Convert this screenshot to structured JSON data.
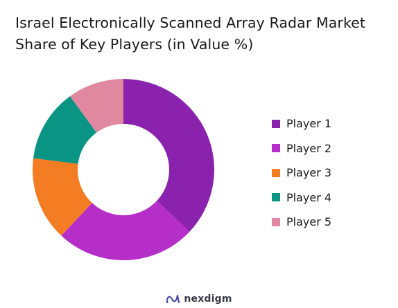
{
  "title": "Israel Electronically Scanned Array Radar Market Share of Key Players (in Value %)",
  "chart_data": {
    "type": "pie",
    "donut": true,
    "title": "Israel Electronically Scanned Array Radar Market Share of Key Players (in Value %)",
    "categories": [
      "Player 1",
      "Player 2",
      "Player 3",
      "Player 4",
      "Player 5"
    ],
    "values": [
      37,
      25,
      15,
      13,
      10
    ],
    "colors": [
      "#8b22ad",
      "#b62ec8",
      "#f47c22",
      "#0a9484",
      "#e088a0"
    ],
    "legend_position": "right"
  },
  "footer": {
    "brand": "nexdigm"
  }
}
